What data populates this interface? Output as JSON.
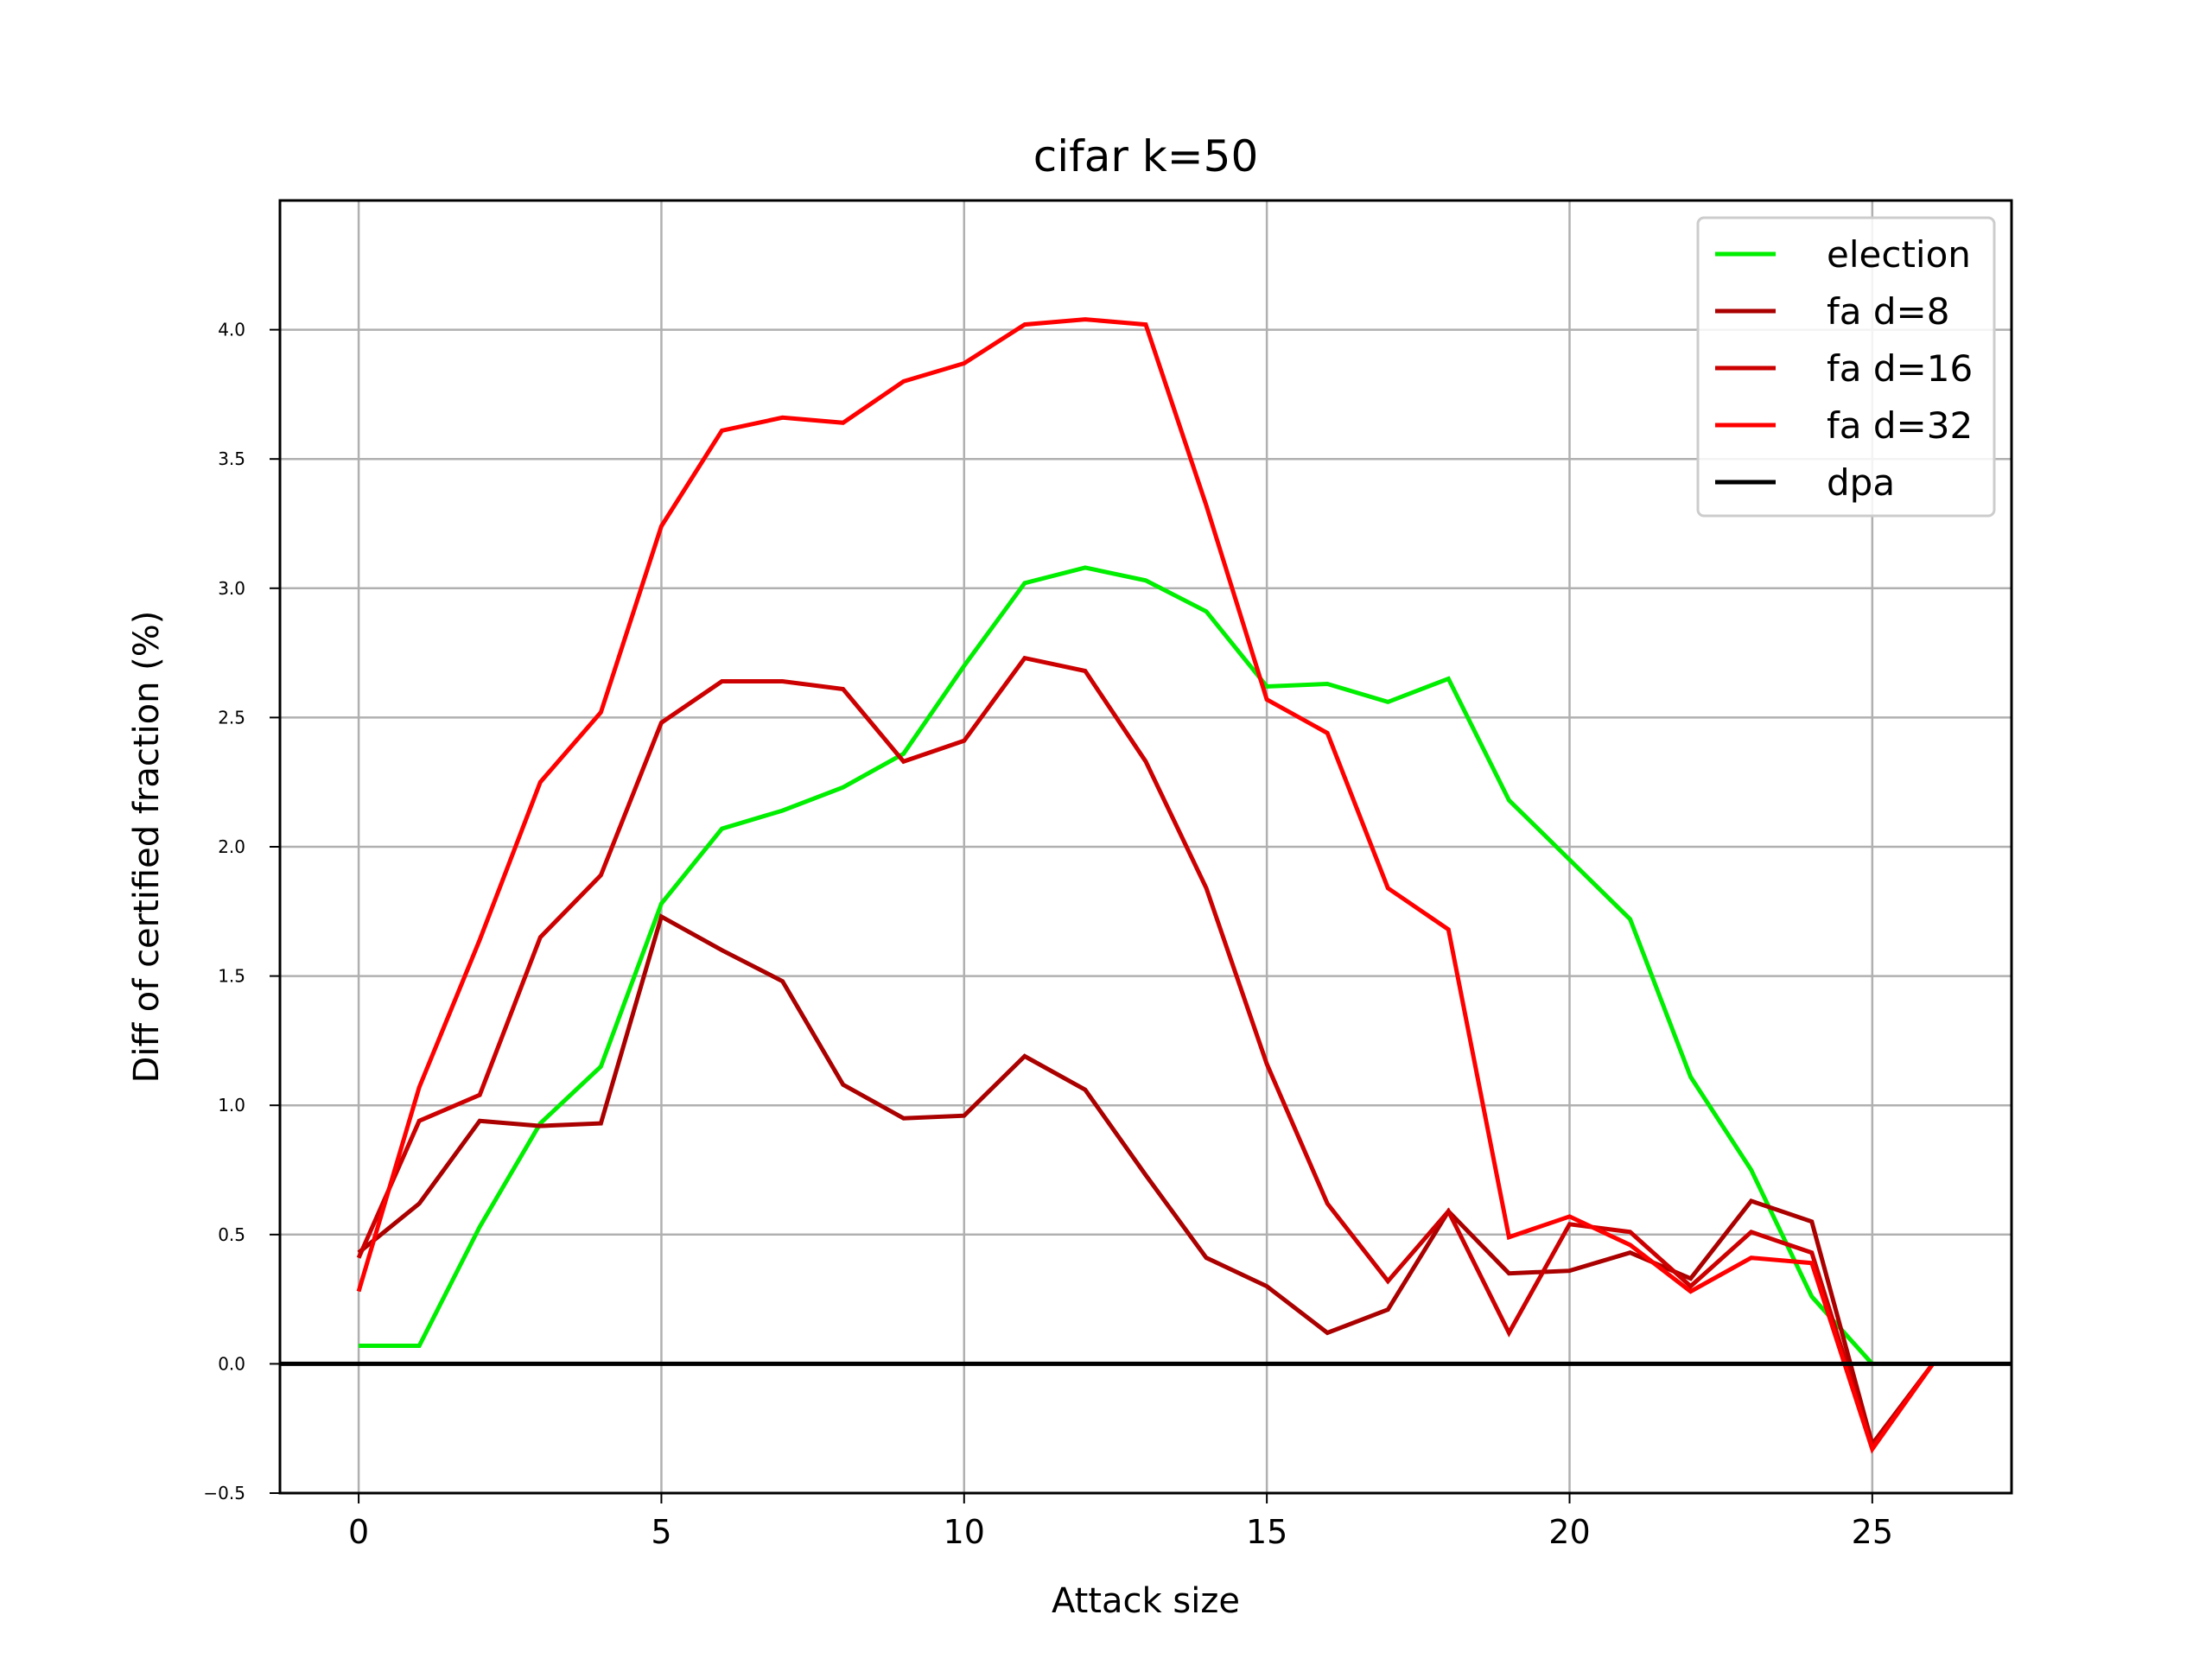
{
  "chart_data": {
    "type": "line",
    "title": "cifar k=50",
    "xlabel": "Attack size",
    "ylabel": "Diff of certified fraction (%)",
    "xlim": [
      -1.3,
      27.3
    ],
    "ylim": [
      -0.5,
      4.5
    ],
    "xticks": [
      0,
      5,
      10,
      15,
      20,
      25
    ],
    "yticks": [
      -0.5,
      0.0,
      0.5,
      1.0,
      1.5,
      2.0,
      2.5,
      3.0,
      3.5,
      4.0
    ],
    "xtick_labels": [
      "0",
      "5",
      "10",
      "15",
      "20",
      "25"
    ],
    "ytick_labels": [
      "−0.5",
      "0.0",
      "0.5",
      "1.0",
      "1.5",
      "2.0",
      "2.5",
      "3.0",
      "3.5",
      "4.0"
    ],
    "grid": true,
    "legend_position": "top-right",
    "series": [
      {
        "name": "election",
        "color": "#00ee00",
        "x": [
          0,
          1,
          2,
          3,
          4,
          5,
          6,
          7,
          8,
          9,
          10,
          11,
          12,
          13,
          14,
          15,
          16,
          17,
          18,
          19,
          20,
          21,
          22,
          23,
          24,
          25
        ],
        "y": [
          0.07,
          0.07,
          0.53,
          0.93,
          1.15,
          1.78,
          2.07,
          2.14,
          2.23,
          2.36,
          2.7,
          3.02,
          3.08,
          3.03,
          2.91,
          2.62,
          2.63,
          2.56,
          2.65,
          2.18,
          1.95,
          1.72,
          1.11,
          0.75,
          0.26,
          0.0
        ]
      },
      {
        "name": "fa d=8",
        "color": "#aa0000",
        "x": [
          0,
          1,
          2,
          3,
          4,
          5,
          6,
          7,
          8,
          9,
          10,
          11,
          12,
          13,
          14,
          15,
          16,
          17,
          18,
          19,
          20,
          21,
          22,
          23,
          24,
          25,
          26
        ],
        "y": [
          0.43,
          0.62,
          0.94,
          0.92,
          0.93,
          1.73,
          1.6,
          1.48,
          1.08,
          0.95,
          0.96,
          1.19,
          1.06,
          0.73,
          0.41,
          0.3,
          0.12,
          0.21,
          0.59,
          0.35,
          0.36,
          0.43,
          0.33,
          0.63,
          0.55,
          -0.31,
          0.0
        ]
      },
      {
        "name": "fa d=16",
        "color": "#cc0000",
        "x": [
          0,
          1,
          2,
          3,
          4,
          5,
          6,
          7,
          8,
          9,
          10,
          11,
          12,
          13,
          14,
          15,
          16,
          17,
          18,
          19,
          20,
          21,
          22,
          23,
          24,
          25,
          26
        ],
        "y": [
          0.41,
          0.94,
          1.04,
          1.65,
          1.89,
          2.48,
          2.64,
          2.64,
          2.61,
          2.33,
          2.41,
          2.73,
          2.68,
          2.33,
          1.84,
          1.16,
          0.62,
          0.32,
          0.59,
          0.12,
          0.54,
          0.51,
          0.3,
          0.51,
          0.43,
          -0.32,
          0.0
        ]
      },
      {
        "name": "fa d=32",
        "color": "#ff0000",
        "x": [
          0,
          1,
          2,
          3,
          4,
          5,
          6,
          7,
          8,
          9,
          10,
          11,
          12,
          13,
          14,
          15,
          16,
          17,
          18,
          19,
          20,
          21,
          22,
          23,
          24,
          25,
          26
        ],
        "y": [
          0.28,
          1.07,
          1.64,
          2.25,
          2.52,
          3.24,
          3.61,
          3.66,
          3.64,
          3.8,
          3.87,
          4.02,
          4.04,
          4.02,
          3.32,
          2.57,
          2.44,
          1.84,
          1.68,
          0.49,
          0.57,
          0.46,
          0.28,
          0.41,
          0.39,
          -0.33,
          0.0
        ]
      },
      {
        "name": "dpa",
        "color": "#000000",
        "type": "hline",
        "y": 0.0
      }
    ]
  }
}
